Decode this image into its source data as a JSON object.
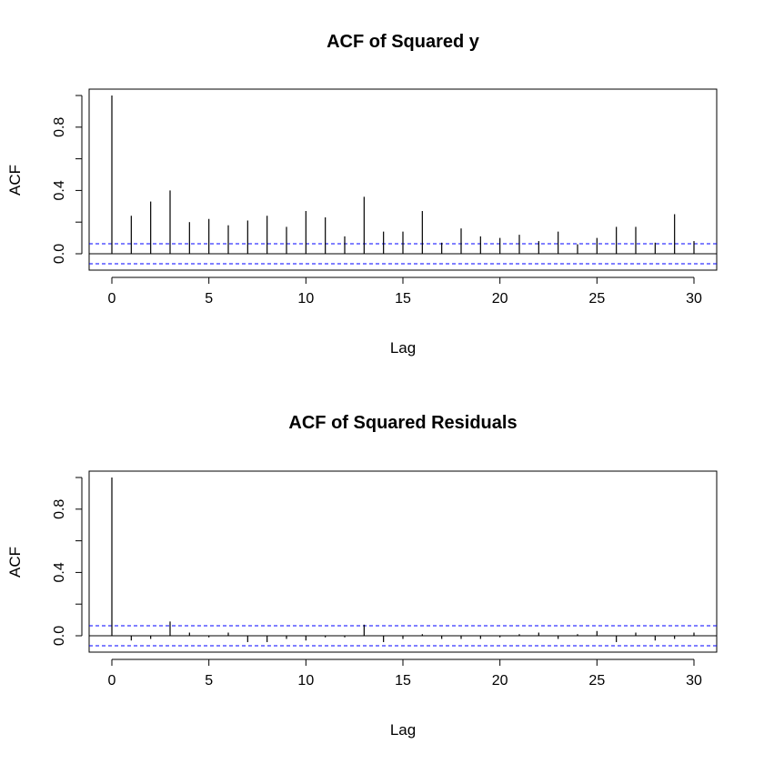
{
  "chart_data": [
    {
      "type": "bar",
      "title": "ACF of Squared y",
      "xlabel": "Lag",
      "ylabel": "ACF",
      "xlim": [
        0,
        30
      ],
      "ylim": [
        -0.1,
        1.0
      ],
      "x_ticks": [
        0,
        5,
        10,
        15,
        20,
        25,
        30
      ],
      "y_ticks": [
        0.0,
        0.4,
        0.8
      ],
      "y_minor_ticks": [
        0.2,
        0.6,
        1.0
      ],
      "conf_limit": 0.063,
      "conf_color": "#0000ff",
      "lags": [
        0,
        1,
        2,
        3,
        4,
        5,
        6,
        7,
        8,
        9,
        10,
        11,
        12,
        13,
        14,
        15,
        16,
        17,
        18,
        19,
        20,
        21,
        22,
        23,
        24,
        25,
        26,
        27,
        28,
        29,
        30
      ],
      "values": [
        1.0,
        0.24,
        0.33,
        0.4,
        0.2,
        0.22,
        0.18,
        0.21,
        0.24,
        0.17,
        0.27,
        0.23,
        0.11,
        0.36,
        0.14,
        0.14,
        0.27,
        0.07,
        0.16,
        0.11,
        0.1,
        0.12,
        0.08,
        0.14,
        0.06,
        0.1,
        0.17,
        0.17,
        0.07,
        0.25,
        0.08
      ]
    },
    {
      "type": "bar",
      "title": "ACF of Squared Residuals",
      "xlabel": "Lag",
      "ylabel": "ACF",
      "xlim": [
        0,
        30
      ],
      "ylim": [
        -0.1,
        1.0
      ],
      "x_ticks": [
        0,
        5,
        10,
        15,
        20,
        25,
        30
      ],
      "y_ticks": [
        0.0,
        0.4,
        0.8
      ],
      "y_minor_ticks": [
        0.2,
        0.6,
        1.0
      ],
      "conf_limit": 0.063,
      "conf_color": "#0000ff",
      "lags": [
        0,
        1,
        2,
        3,
        4,
        5,
        6,
        7,
        8,
        9,
        10,
        11,
        12,
        13,
        14,
        15,
        16,
        17,
        18,
        19,
        20,
        21,
        22,
        23,
        24,
        25,
        26,
        27,
        28,
        29,
        30
      ],
      "values": [
        1.0,
        -0.03,
        -0.02,
        0.09,
        0.02,
        -0.01,
        0.02,
        -0.04,
        -0.04,
        -0.02,
        -0.03,
        -0.01,
        -0.01,
        0.07,
        -0.04,
        -0.02,
        0.01,
        -0.02,
        -0.02,
        -0.02,
        -0.01,
        0.01,
        0.02,
        -0.02,
        0.01,
        0.03,
        -0.04,
        0.02,
        -0.03,
        -0.02,
        0.02
      ]
    }
  ]
}
